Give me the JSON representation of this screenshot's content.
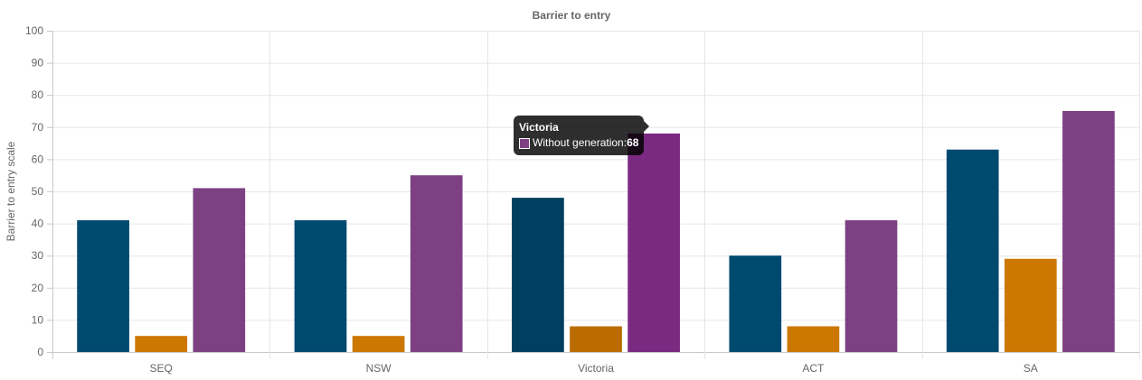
{
  "chart_data": {
    "type": "bar",
    "title": "Barrier to entry",
    "xlabel": "",
    "ylabel": "Barrier to entry scale",
    "categories": [
      "SEQ",
      "NSW",
      "Victoria",
      "ACT",
      "SA"
    ],
    "series": [
      {
        "values": [
          41,
          41,
          48,
          30,
          63
        ],
        "color": "#004a70"
      },
      {
        "values": [
          5,
          5,
          8,
          8,
          29
        ],
        "color": "#cc7700"
      },
      {
        "name": "Without generation",
        "values": [
          51,
          55,
          68,
          41,
          75
        ],
        "color": "#7d4183"
      }
    ],
    "ylim": [
      0,
      100
    ],
    "yticks": [
      0,
      10,
      20,
      30,
      40,
      50,
      60,
      70,
      80,
      90,
      100
    ],
    "grid": true,
    "legend": "none"
  },
  "tooltip": {
    "title": "Victoria",
    "series_label": "Without generation: ",
    "value": "68",
    "swatch_color": "#7d4183"
  },
  "hover_colors": [
    "#003f5f",
    "#bb6c00",
    "#7a2a80"
  ]
}
